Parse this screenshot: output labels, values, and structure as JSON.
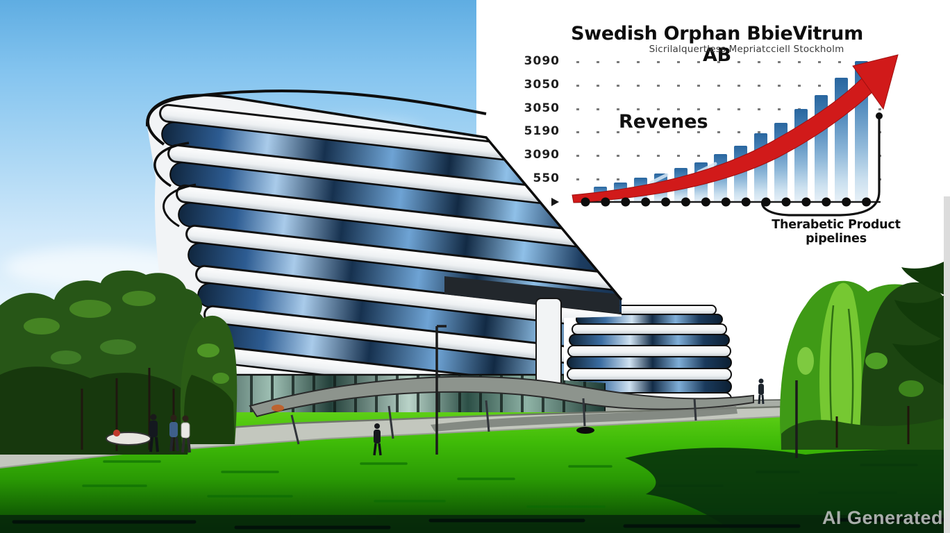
{
  "chart_data": {
    "type": "bar",
    "title": "Swedish Orphan BbieVitrum AB",
    "subtitle": "Sicrilalquertless Mepriatcciell Stockholm",
    "series_label": "Revenes",
    "xlabel": "Therabetic Product pipelines",
    "y_tick_labels": [
      "3090",
      "3050",
      "3050",
      "5190",
      "3090",
      "550"
    ],
    "values_relative": [
      11,
      14,
      17,
      20,
      24,
      28,
      34,
      40,
      49,
      56,
      66,
      76,
      88,
      100
    ],
    "ylim": [
      0,
      100
    ],
    "x_dot_count": 15,
    "grid": "dotted-horizontal",
    "legend": "none",
    "bar_color_top": "#29669f",
    "bar_color_bottom": "#e8f1f8",
    "trend_arrow_color": "#d11a1a",
    "axis_color": "#1c1c1c"
  },
  "scene": {
    "watermark": "AI Generated",
    "colors": {
      "sky_top": "#5fade2",
      "panel": "#ffffff",
      "grass_bright": "#3fbb08",
      "grass_shadow": "#0a3f03",
      "pine_tree": "#275617",
      "bright_tree": "#76c832",
      "building_glass": "#16314f",
      "building_band": "#eef1f3",
      "walkway": "#c3c7be",
      "arrow_red": "#d11a1a"
    }
  }
}
